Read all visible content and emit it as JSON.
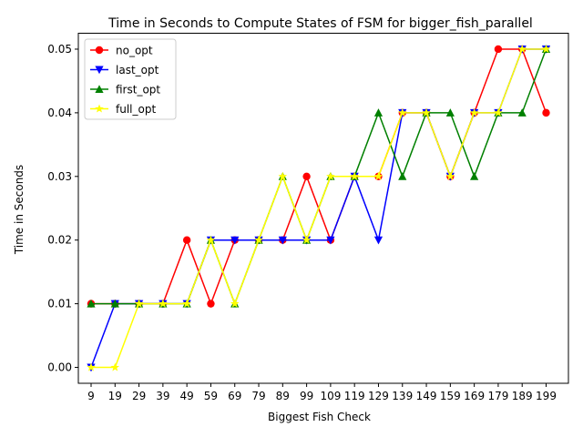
{
  "chart_data": {
    "type": "line",
    "title": "Time in Seconds to Compute States of FSM for bigger_fish_parallel",
    "xlabel": "Biggest Fish Check",
    "ylabel": "Time in Seconds",
    "categories": [
      "9",
      "19",
      "29",
      "39",
      "49",
      "59",
      "69",
      "79",
      "89",
      "99",
      "109",
      "119",
      "129",
      "139",
      "149",
      "159",
      "169",
      "179",
      "189",
      "199"
    ],
    "ylim": [
      -0.0025,
      0.0525
    ],
    "yticks": [
      "0.00",
      "0.01",
      "0.02",
      "0.03",
      "0.04",
      "0.05"
    ],
    "ytick_values": [
      0,
      0.01,
      0.02,
      0.03,
      0.04,
      0.05
    ],
    "grid": false,
    "legend_position": "top-left",
    "series": [
      {
        "name": "no_opt",
        "color": "#ff0000",
        "marker": "circle",
        "values": [
          0.01,
          0.01,
          0.01,
          0.01,
          0.02,
          0.01,
          0.02,
          0.02,
          0.02,
          0.03,
          0.02,
          0.03,
          0.03,
          0.04,
          0.04,
          0.03,
          0.04,
          0.05,
          0.05,
          0.04
        ]
      },
      {
        "name": "last_opt",
        "color": "#0000ff",
        "marker": "triangle-down",
        "values": [
          0.0,
          0.01,
          0.01,
          0.01,
          0.01,
          0.02,
          0.02,
          0.02,
          0.02,
          0.02,
          0.02,
          0.03,
          0.02,
          0.04,
          0.04,
          0.03,
          0.04,
          0.04,
          0.05,
          0.05
        ]
      },
      {
        "name": "first_opt",
        "color": "#008000",
        "marker": "triangle-up",
        "values": [
          0.01,
          0.01,
          0.01,
          0.01,
          0.01,
          0.02,
          0.01,
          0.02,
          0.03,
          0.02,
          0.03,
          0.03,
          0.04,
          0.03,
          0.04,
          0.04,
          0.03,
          0.04,
          0.04,
          0.05
        ]
      },
      {
        "name": "full_opt",
        "color": "#ffff00",
        "marker": "star",
        "values": [
          0.0,
          0.0,
          0.01,
          0.01,
          0.01,
          0.02,
          0.01,
          0.02,
          0.03,
          0.02,
          0.03,
          0.03,
          0.03,
          0.04,
          0.04,
          0.03,
          0.04,
          0.04,
          0.05,
          0.05
        ]
      }
    ]
  }
}
